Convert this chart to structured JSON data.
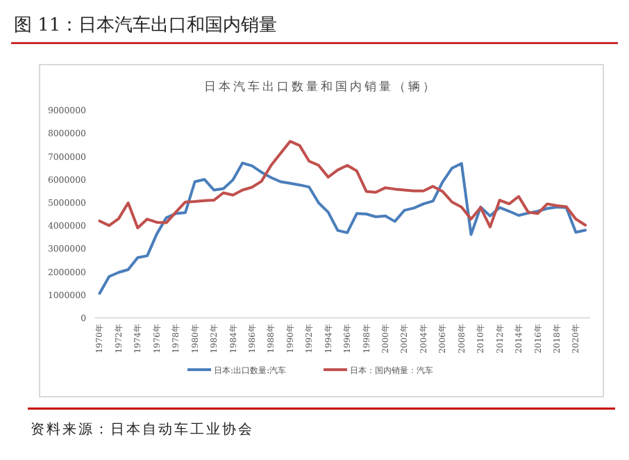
{
  "chart_data": {
    "type": "line",
    "title": "图 11：日本汽车出口和国内销量",
    "subtitle": "日本汽车出口数量和国内销量（辆）",
    "categories": [
      "1970年",
      null,
      "1972年",
      null,
      "1974年",
      null,
      "1976年",
      null,
      "1978年",
      null,
      "1980年",
      null,
      "1982年",
      null,
      "1984年",
      null,
      "1986年",
      null,
      "1988年",
      null,
      "1990年",
      null,
      "1992年",
      null,
      "1994年",
      null,
      "1996年",
      null,
      "1998年",
      null,
      "2000年",
      null,
      "2002年",
      null,
      "2004年",
      null,
      "2006年",
      null,
      "2008年",
      null,
      "2010年",
      null,
      "2012年",
      null,
      "2014年",
      null,
      "2016年",
      null,
      "2018年",
      null,
      "2020年",
      null
    ],
    "series": [
      {
        "name": "日本:出口数量:汽车",
        "color": "#4a7ebb",
        "values": [
          1060000,
          1790000,
          1970000,
          2090000,
          2610000,
          2690000,
          3630000,
          4340000,
          4520000,
          4560000,
          5900000,
          6000000,
          5540000,
          5600000,
          5980000,
          6710000,
          6590000,
          6310000,
          6080000,
          5900000,
          5830000,
          5760000,
          5670000,
          4980000,
          4580000,
          3790000,
          3690000,
          4520000,
          4500000,
          4380000,
          4420000,
          4180000,
          4660000,
          4760000,
          4940000,
          5060000,
          5880000,
          6490000,
          6690000,
          3610000,
          4800000,
          4420000,
          4780000,
          4620000,
          4440000,
          4540000,
          4620000,
          4740000,
          4800000,
          4780000,
          3710000,
          3800000
        ]
      },
      {
        "name": "日本：国内销量：汽车",
        "color": "#c0504d",
        "values": [
          4200000,
          4000000,
          4300000,
          4980000,
          3900000,
          4280000,
          4140000,
          4120000,
          4580000,
          5020000,
          5040000,
          5080000,
          5100000,
          5420000,
          5320000,
          5540000,
          5660000,
          5920000,
          6610000,
          7130000,
          7650000,
          7470000,
          6790000,
          6610000,
          6100000,
          6410000,
          6610000,
          6370000,
          5480000,
          5440000,
          5640000,
          5580000,
          5540000,
          5500000,
          5500000,
          5700000,
          5480000,
          5020000,
          4800000,
          4280000,
          4780000,
          3940000,
          5100000,
          4940000,
          5260000,
          4580000,
          4520000,
          4940000,
          4860000,
          4820000,
          4280000,
          4020000
        ]
      }
    ],
    "ylim": [
      0,
      9000000
    ],
    "yticks": [
      0,
      1000000,
      2000000,
      3000000,
      4000000,
      5000000,
      6000000,
      7000000,
      8000000,
      9000000
    ],
    "legend": "bottom",
    "line_style": "solid",
    "annotations": [
      "资料来源：日本自动车工业协会"
    ]
  }
}
